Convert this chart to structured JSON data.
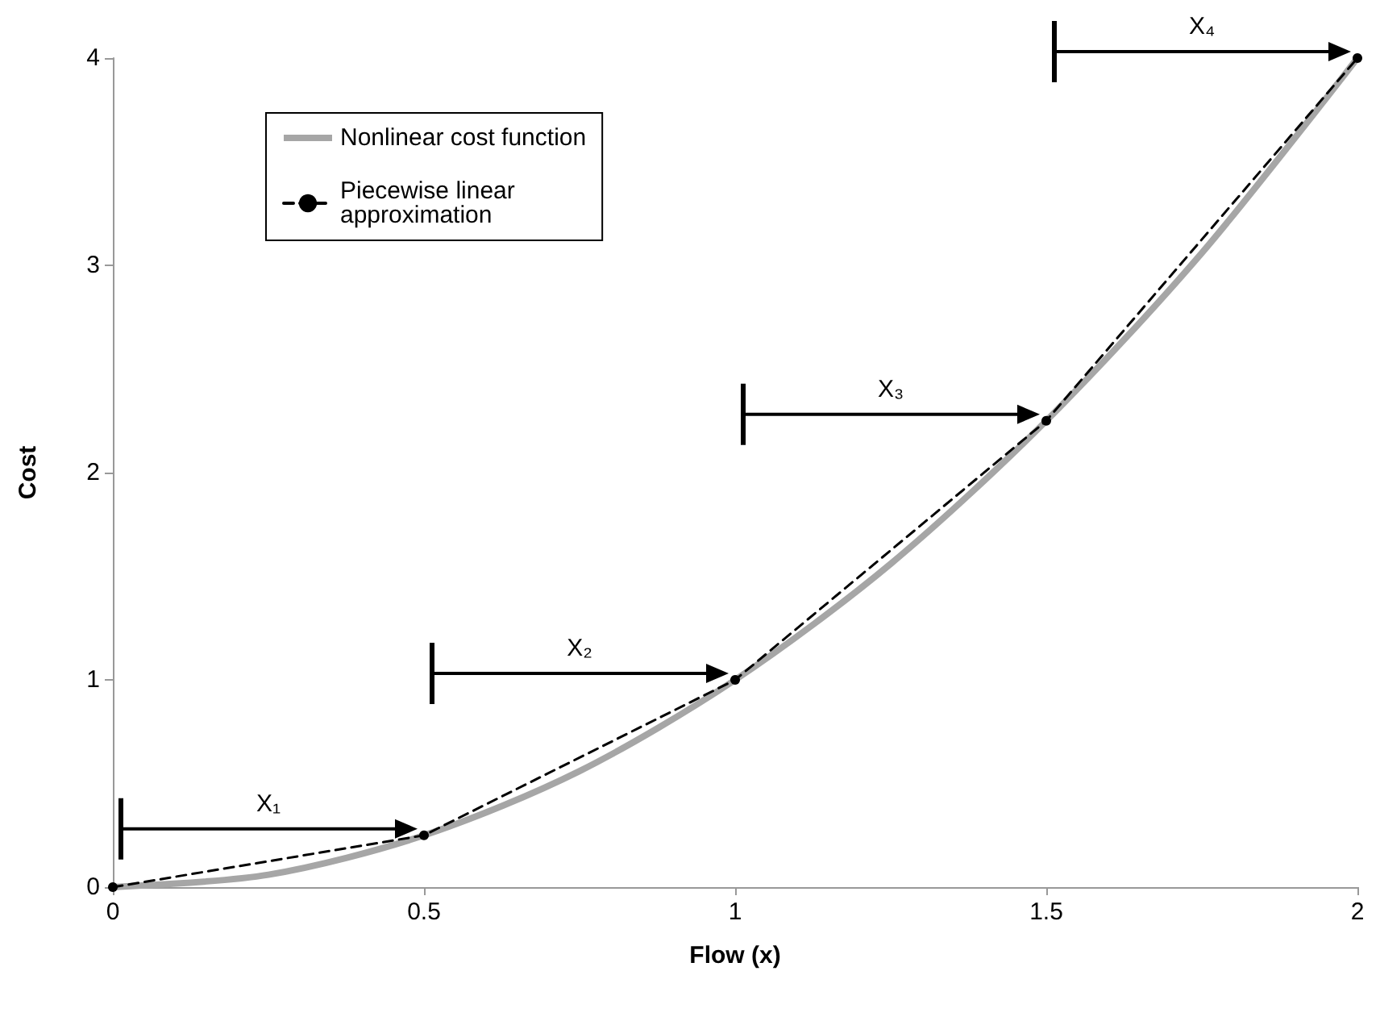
{
  "chart_data": {
    "type": "line",
    "xlabel": "Flow (x)",
    "ylabel": "Cost",
    "xlim": [
      0,
      2
    ],
    "xticks": [
      0,
      0.5,
      1,
      1.5,
      2
    ],
    "ylim": [
      0,
      4
    ],
    "yticks": [
      0,
      1,
      2,
      3,
      4
    ],
    "grid": false,
    "legend": "top left",
    "series": [
      {
        "name": "Nonlinear cost function",
        "color": "#a6a6a6",
        "marker": "none",
        "line_style": "solid",
        "x": [
          0,
          0.25,
          0.5,
          0.75,
          1,
          1.25,
          1.5,
          1.75,
          2
        ],
        "values": [
          0,
          0.06,
          0.25,
          0.56,
          1,
          1.56,
          2.25,
          3.06,
          4
        ]
      },
      {
        "name": "Piecewise linear approximation",
        "color": "#000000",
        "marker": "circle",
        "line_style": "dashed",
        "x": [
          0,
          0.5,
          1,
          1.5,
          2
        ],
        "values": [
          0,
          0.25,
          1,
          2.25,
          4
        ]
      }
    ],
    "annotations": [
      "X₁",
      "X₂",
      "X₃",
      "X₄"
    ]
  }
}
